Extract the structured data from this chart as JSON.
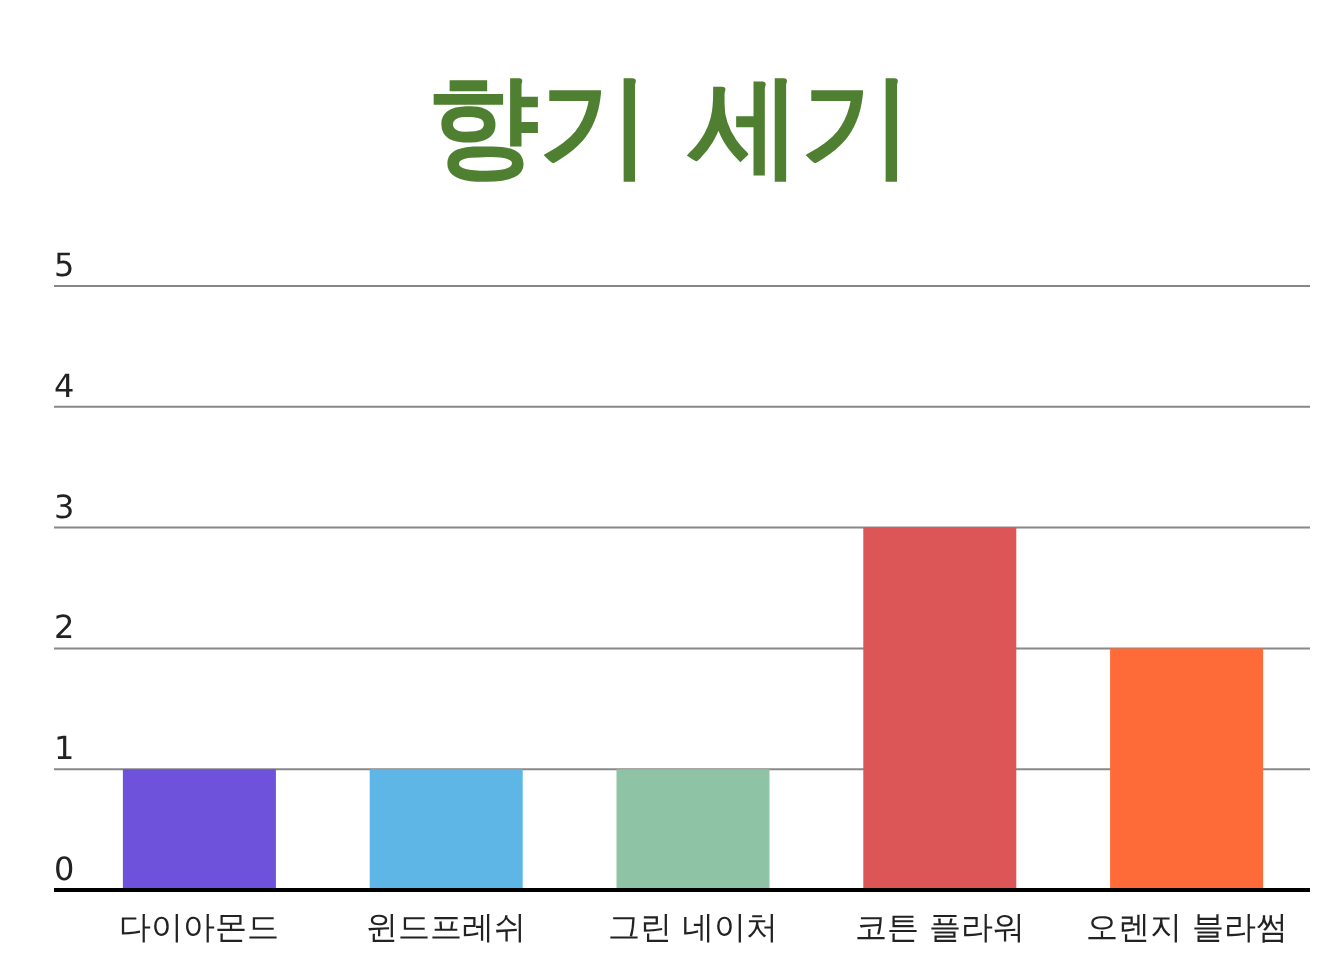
{
  "chart_data": {
    "type": "bar",
    "title": "향기 세기",
    "categories": [
      "다이아몬드",
      "윈드프레쉬",
      "그린 네이처",
      "코튼 플라워",
      "오렌지 블라썸"
    ],
    "values": [
      1,
      1,
      1,
      3,
      2
    ],
    "colors": [
      "#6f52dc",
      "#5eb6e6",
      "#8fc3a6",
      "#dc5557",
      "#fe6b38"
    ],
    "ylim": [
      0,
      5
    ],
    "yticks": [
      0,
      1,
      2,
      3,
      4,
      5
    ],
    "grid": "y"
  }
}
